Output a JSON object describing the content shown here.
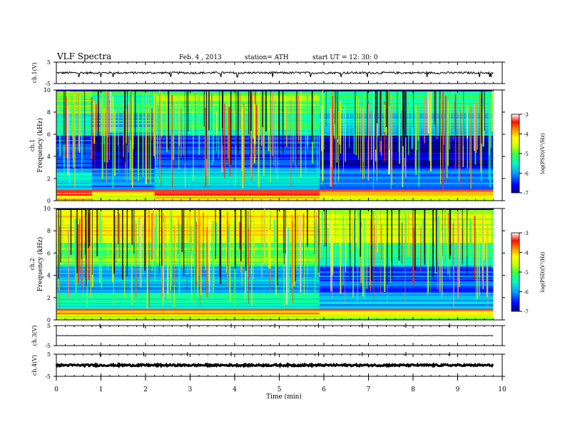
{
  "header": {
    "title": "VLF  Spectra",
    "date": "Feb. 4  , 2013",
    "station": "station= ATH",
    "start": "start  UT  =    12: 30: 0"
  },
  "colorbar": {
    "label": "log(PSD)(V²/Hz)",
    "ticks": [
      "-3",
      "-4",
      "-5",
      "-6",
      "-7"
    ],
    "colors": [
      "#000080",
      "#0000ff",
      "#00b0ff",
      "#00ffd0",
      "#40ff40",
      "#c8ff00",
      "#ffff00",
      "#ffa000",
      "#ff2000",
      "#ff8080",
      "#ffffff"
    ]
  },
  "chart_data": [
    {
      "type": "line",
      "panel": "ch.1(V)",
      "ylabel": "ch.1(V)",
      "ylim": [
        -5,
        5
      ],
      "yticks": [
        "5",
        "-5"
      ],
      "description_values": {
        "baseline": 0,
        "typical_amplitude": 0.5,
        "spikes_to": -2
      }
    },
    {
      "type": "heatmap",
      "panel": "ch.1 spectrogram",
      "ylabel": "Frequency  (kHz)",
      "channel_label": "ch.1",
      "ylim": [
        0,
        10
      ],
      "yticks": [
        "10",
        "8",
        "6",
        "4",
        "2",
        "0"
      ],
      "zlim": [
        -7,
        -3
      ],
      "color_label": "log(PSD)(V²/Hz)",
      "bands": [
        {
          "from_khz": 0,
          "to_khz": 0.5,
          "level": -4.2
        },
        {
          "from_khz": 0.5,
          "to_khz": 1.0,
          "level": -3.6
        },
        {
          "from_khz": 1.0,
          "to_khz": 3.0,
          "level": -5.8
        },
        {
          "from_khz": 3.0,
          "to_khz": 6.0,
          "level": -6.5
        },
        {
          "from_khz": 6.0,
          "to_khz": 8.0,
          "level": -5.5
        },
        {
          "from_khz": 8.0,
          "to_khz": 10.0,
          "level": -5.0
        }
      ],
      "time_segments_min": [
        0,
        0.8,
        2.2,
        5.9,
        9.8
      ]
    },
    {
      "type": "heatmap",
      "panel": "ch.2 spectrogram",
      "ylabel": "Frequency  (kHz)",
      "channel_label": "ch.2",
      "ylim": [
        0,
        10
      ],
      "yticks": [
        "10",
        "8",
        "6",
        "4",
        "2",
        "0"
      ],
      "zlim": [
        -7,
        -3
      ],
      "color_label": "log(PSD)(V²/Hz)",
      "bands": [
        {
          "from_khz": 0,
          "to_khz": 0.5,
          "level": -4.6
        },
        {
          "from_khz": 0.5,
          "to_khz": 1.0,
          "level": -4.0
        },
        {
          "from_khz": 1.0,
          "to_khz": 2.5,
          "level": -5.6
        },
        {
          "from_khz": 2.5,
          "to_khz": 5.0,
          "level": -6.0
        },
        {
          "from_khz": 5.0,
          "to_khz": 7.0,
          "level": -5.0
        },
        {
          "from_khz": 7.0,
          "to_khz": 10.0,
          "level": -4.3
        }
      ],
      "time_segments_min": [
        0,
        5.9,
        9.8
      ]
    },
    {
      "type": "line",
      "panel": "ch.3(V)",
      "ylabel": "ch.3(V)",
      "ylim": [
        -5,
        5
      ],
      "yticks": [
        "5",
        "-5"
      ],
      "description_values": {
        "baseline": 0,
        "typical_amplitude": 0.05
      }
    },
    {
      "type": "line",
      "panel": "ch.4(V)",
      "ylabel": "ch.4(V)",
      "ylim": [
        -5,
        5
      ],
      "yticks": [
        "5",
        "-5"
      ],
      "description_values": {
        "baseline": 0,
        "typical_amplitude": 0.4
      }
    }
  ],
  "xaxis": {
    "label": "Time  (min)",
    "xlim": [
      0,
      10
    ],
    "ticks": [
      "0",
      "1",
      "2",
      "3",
      "4",
      "5",
      "6",
      "7",
      "8",
      "9",
      "10"
    ],
    "data_end_min": 9.8
  }
}
